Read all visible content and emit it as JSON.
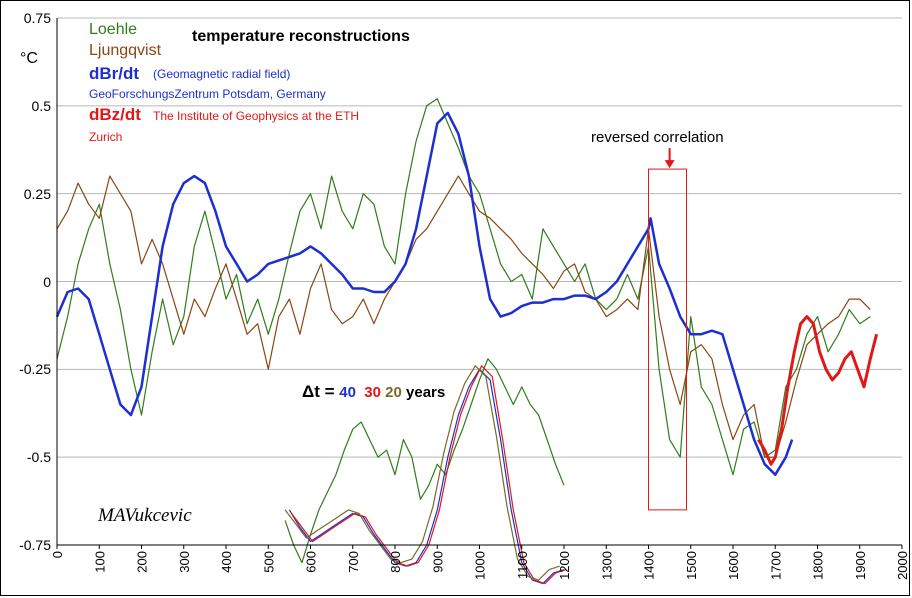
{
  "chart_data": {
    "type": "line",
    "title": "temperature reconstructions",
    "unit_label": "°C",
    "xlim": [
      0,
      2000
    ],
    "ylim": [
      -0.75,
      0.75
    ],
    "xticks": [
      "0",
      "100",
      "200",
      "300",
      "400",
      "500",
      "600",
      "700",
      "800",
      "900",
      "1000",
      "1100",
      "1200",
      "1300",
      "1400",
      "1500",
      "1600",
      "1700",
      "1800",
      "1900",
      "2000"
    ],
    "yticks": [
      "0.75",
      "0.5",
      "0.25",
      "0",
      "-0.25",
      "-0.5",
      "-0.75"
    ],
    "grid": "horizontal",
    "legend": {
      "loehle": "Loehle",
      "ljungqvist": "Ljungqvist",
      "dbr_label": "dBr/dt",
      "dbr_desc": "(Geomagnetic radial field)",
      "dbr_source": "GeoForschungsZentrum Potsdam, Germany",
      "dbz_label": "dBz/dt",
      "dbz_desc": "The Institute of Geophysics at the ETH",
      "dbz_source": "Zurich"
    },
    "annotation": "reversed correlation",
    "annotation_box_x": [
      1400,
      1490
    ],
    "annotation_box_y": [
      -0.65,
      0.32
    ],
    "lag_label": {
      "prefix": "Δt = ",
      "v40": "40",
      "v30": "30",
      "v20": "20",
      "suffix": "years"
    },
    "signature": "MAVukcevic",
    "colors": {
      "loehle": "#2e7d1a",
      "ljungqvist": "#8b4513",
      "dbr": "#1e2fd0",
      "dbz": "#e01818",
      "lag20": "#7a6a2a",
      "grid": "#b8b8b8"
    },
    "series": [
      {
        "name": "Loehle",
        "color": "#2e7d1a",
        "x": [
          0,
          25,
          50,
          75,
          100,
          125,
          150,
          175,
          200,
          225,
          250,
          275,
          300,
          325,
          350,
          375,
          400,
          425,
          450,
          475,
          500,
          525,
          550,
          575,
          600,
          625,
          650,
          675,
          700,
          725,
          750,
          775,
          800,
          825,
          850,
          875,
          900,
          925,
          950,
          975,
          1000,
          1025,
          1050,
          1075,
          1100,
          1125,
          1150,
          1175,
          1200,
          1225,
          1250,
          1275,
          1300,
          1325,
          1350,
          1375,
          1400,
          1425,
          1450,
          1475,
          1500,
          1525,
          1550,
          1575,
          1600,
          1625,
          1650,
          1675,
          1700,
          1725,
          1750,
          1775,
          1800,
          1825,
          1850,
          1875,
          1900,
          1925
        ],
        "y": [
          -0.22,
          -0.1,
          0.05,
          0.15,
          0.22,
          0.05,
          -0.08,
          -0.25,
          -0.38,
          -0.2,
          -0.05,
          -0.18,
          -0.1,
          0.1,
          0.2,
          0.08,
          -0.05,
          0.02,
          -0.12,
          -0.05,
          -0.15,
          -0.05,
          0.08,
          0.2,
          0.25,
          0.15,
          0.3,
          0.2,
          0.15,
          0.25,
          0.22,
          0.1,
          0.05,
          0.25,
          0.4,
          0.5,
          0.52,
          0.45,
          0.38,
          0.3,
          0.25,
          0.15,
          0.05,
          0.0,
          0.02,
          -0.05,
          0.15,
          0.1,
          0.05,
          0.0,
          0.05,
          -0.05,
          -0.08,
          -0.05,
          0.02,
          -0.05,
          0.1,
          -0.25,
          -0.45,
          -0.5,
          -0.1,
          -0.3,
          -0.35,
          -0.45,
          -0.55,
          -0.42,
          -0.4,
          -0.5,
          -0.48,
          -0.3,
          -0.25,
          -0.15,
          -0.1,
          -0.2,
          -0.15,
          -0.08,
          -0.12,
          -0.1
        ]
      },
      {
        "name": "Ljungqvist",
        "color": "#8b4513",
        "x": [
          0,
          25,
          50,
          75,
          100,
          125,
          150,
          175,
          200,
          225,
          250,
          275,
          300,
          325,
          350,
          375,
          400,
          425,
          450,
          475,
          500,
          525,
          550,
          575,
          600,
          625,
          650,
          675,
          700,
          725,
          750,
          775,
          800,
          825,
          850,
          875,
          900,
          925,
          950,
          975,
          1000,
          1025,
          1050,
          1075,
          1100,
          1125,
          1150,
          1175,
          1200,
          1225,
          1250,
          1275,
          1300,
          1325,
          1350,
          1375,
          1400,
          1425,
          1450,
          1475,
          1500,
          1525,
          1550,
          1575,
          1600,
          1625,
          1650,
          1675,
          1700,
          1725,
          1750,
          1775,
          1800,
          1825,
          1850,
          1875,
          1900,
          1925
        ],
        "y": [
          0.15,
          0.2,
          0.28,
          0.22,
          0.18,
          0.3,
          0.25,
          0.2,
          0.05,
          0.12,
          0.05,
          -0.05,
          -0.15,
          -0.05,
          -0.1,
          -0.02,
          0.05,
          -0.05,
          -0.15,
          -0.12,
          -0.25,
          -0.1,
          -0.05,
          -0.15,
          -0.02,
          0.05,
          -0.08,
          -0.12,
          -0.1,
          -0.05,
          -0.12,
          -0.05,
          0.0,
          0.05,
          0.12,
          0.15,
          0.2,
          0.25,
          0.3,
          0.25,
          0.2,
          0.18,
          0.15,
          0.12,
          0.08,
          0.05,
          0.02,
          -0.02,
          0.03,
          0.05,
          -0.03,
          -0.05,
          -0.1,
          -0.08,
          -0.05,
          -0.08,
          0.15,
          -0.1,
          -0.25,
          -0.35,
          -0.2,
          -0.18,
          -0.22,
          -0.35,
          -0.45,
          -0.38,
          -0.35,
          -0.5,
          -0.5,
          -0.4,
          -0.28,
          -0.18,
          -0.15,
          -0.12,
          -0.1,
          -0.05,
          -0.05,
          -0.08
        ]
      },
      {
        "name": "dBr/dt",
        "color": "#1e2fd0",
        "x": [
          0,
          25,
          50,
          75,
          100,
          125,
          150,
          175,
          200,
          225,
          250,
          275,
          300,
          325,
          350,
          375,
          400,
          425,
          450,
          475,
          500,
          525,
          550,
          575,
          600,
          625,
          650,
          675,
          700,
          725,
          750,
          775,
          800,
          825,
          850,
          875,
          900,
          925,
          950,
          975,
          1000,
          1025,
          1050,
          1075,
          1100,
          1125,
          1150,
          1175,
          1200,
          1225,
          1250,
          1275,
          1300,
          1325,
          1350,
          1375,
          1400,
          1405,
          1425,
          1450,
          1475,
          1500,
          1525,
          1550,
          1575,
          1600,
          1625,
          1650,
          1675,
          1700,
          1725,
          1740
        ],
        "y": [
          -0.1,
          -0.03,
          -0.02,
          -0.05,
          -0.15,
          -0.25,
          -0.35,
          -0.38,
          -0.3,
          -0.1,
          0.1,
          0.22,
          0.28,
          0.3,
          0.28,
          0.2,
          0.1,
          0.05,
          0.0,
          0.02,
          0.05,
          0.06,
          0.07,
          0.08,
          0.1,
          0.08,
          0.05,
          0.02,
          -0.02,
          -0.02,
          -0.03,
          -0.03,
          0.0,
          0.05,
          0.15,
          0.3,
          0.45,
          0.48,
          0.42,
          0.3,
          0.1,
          -0.05,
          -0.1,
          -0.09,
          -0.07,
          -0.06,
          -0.06,
          -0.05,
          -0.05,
          -0.04,
          -0.04,
          -0.05,
          -0.03,
          0.0,
          0.05,
          0.1,
          0.15,
          0.18,
          0.05,
          -0.02,
          -0.1,
          -0.15,
          -0.15,
          -0.14,
          -0.15,
          -0.25,
          -0.35,
          -0.45,
          -0.52,
          -0.55,
          -0.5,
          -0.45
        ]
      },
      {
        "name": "dBz/dt",
        "color": "#e01818",
        "x": [
          1660,
          1675,
          1690,
          1700,
          1715,
          1730,
          1745,
          1760,
          1775,
          1790,
          1805,
          1820,
          1835,
          1850,
          1865,
          1880,
          1895,
          1910,
          1925,
          1940
        ],
        "y": [
          -0.45,
          -0.48,
          -0.52,
          -0.5,
          -0.42,
          -0.3,
          -0.2,
          -0.12,
          -0.1,
          -0.12,
          -0.2,
          -0.25,
          -0.28,
          -0.26,
          -0.22,
          -0.2,
          -0.25,
          -0.3,
          -0.22,
          -0.15
        ]
      },
      {
        "name": "Loehle",
        "color": "#2e7d1a",
        "x": [
          540,
          560,
          580,
          600,
          620,
          640,
          660,
          680,
          700,
          720,
          740,
          760,
          780,
          800,
          820,
          840,
          860,
          880,
          900,
          920,
          940,
          960,
          980,
          1000,
          1020,
          1040,
          1060,
          1080,
          1100,
          1120,
          1140,
          1160,
          1180,
          1200
        ],
        "y": [
          -0.68,
          -0.75,
          -0.8,
          -0.72,
          -0.65,
          -0.6,
          -0.55,
          -0.48,
          -0.42,
          -0.4,
          -0.45,
          -0.5,
          -0.48,
          -0.55,
          -0.45,
          -0.5,
          -0.62,
          -0.58,
          -0.52,
          -0.55,
          -0.48,
          -0.42,
          -0.35,
          -0.28,
          -0.22,
          -0.25,
          -0.3,
          -0.35,
          -0.3,
          -0.35,
          -0.38,
          -0.45,
          -0.52,
          -0.58
        ]
      },
      {
        "name": "dBr/dt",
        "color": "#1e2fd0",
        "x": [
          550,
          575,
          600,
          625,
          650,
          675,
          700,
          725,
          750,
          775,
          800,
          825,
          850,
          875,
          900,
          925,
          950,
          975,
          1000,
          1025,
          1050,
          1075,
          1100,
          1125,
          1150,
          1175,
          1200
        ],
        "y": [
          -0.65,
          -0.7,
          -0.74,
          -0.72,
          -0.7,
          -0.68,
          -0.66,
          -0.67,
          -0.72,
          -0.76,
          -0.8,
          -0.81,
          -0.8,
          -0.75,
          -0.65,
          -0.5,
          -0.38,
          -0.3,
          -0.25,
          -0.28,
          -0.45,
          -0.65,
          -0.8,
          -0.85,
          -0.86,
          -0.83,
          -0.82
        ]
      },
      {
        "name": "dBr/dt",
        "color": "#e01818",
        "x": [
          555,
          580,
          605,
          630,
          655,
          680,
          705,
          730,
          755,
          780,
          805,
          830,
          855,
          880,
          905,
          930,
          955,
          980,
          1005,
          1030,
          1055,
          1080,
          1105,
          1130,
          1155,
          1180,
          1205
        ],
        "y": [
          -0.66,
          -0.7,
          -0.74,
          -0.72,
          -0.7,
          -0.68,
          -0.66,
          -0.67,
          -0.72,
          -0.76,
          -0.8,
          -0.81,
          -0.8,
          -0.75,
          -0.65,
          -0.5,
          -0.38,
          -0.3,
          -0.24,
          -0.27,
          -0.45,
          -0.65,
          -0.8,
          -0.85,
          -0.86,
          -0.83,
          -0.82
        ]
      },
      {
        "name": "dBr/dt",
        "color": "#7a6a2a",
        "x": [
          540,
          565,
          590,
          615,
          640,
          665,
          690,
          715,
          740,
          765,
          790,
          815,
          840,
          865,
          890,
          915,
          940,
          965,
          990,
          1015,
          1040,
          1065,
          1090,
          1115,
          1140,
          1165,
          1190
        ],
        "y": [
          -0.65,
          -0.69,
          -0.73,
          -0.71,
          -0.69,
          -0.67,
          -0.65,
          -0.66,
          -0.71,
          -0.75,
          -0.79,
          -0.8,
          -0.79,
          -0.74,
          -0.64,
          -0.49,
          -0.37,
          -0.29,
          -0.24,
          -0.27,
          -0.44,
          -0.64,
          -0.79,
          -0.84,
          -0.85,
          -0.82,
          -0.81
        ]
      }
    ]
  }
}
